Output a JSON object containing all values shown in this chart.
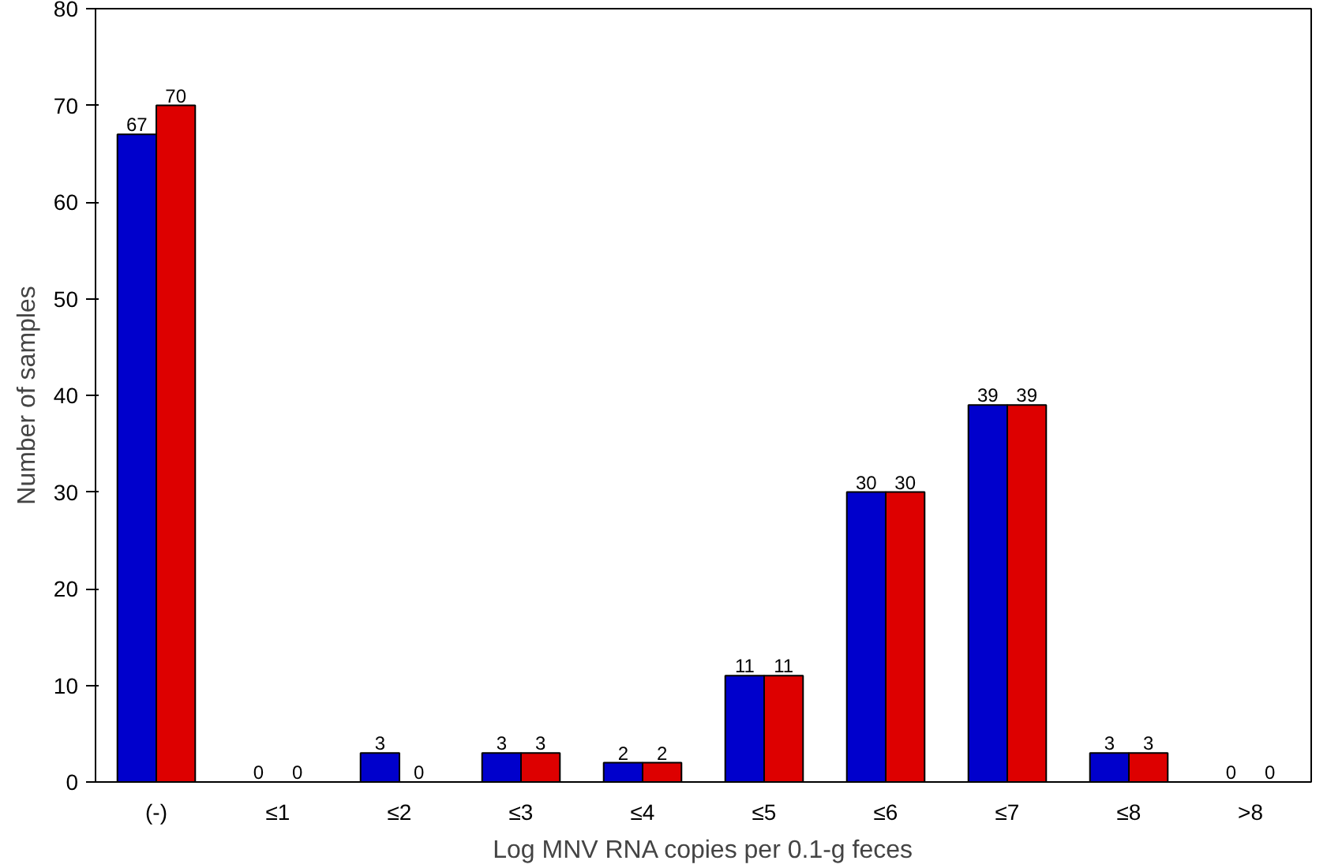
{
  "chart_data": {
    "type": "bar",
    "xlabel": "Log MNV RNA copies per 0.1-g feces",
    "ylabel": "Number of samples",
    "categories": [
      "(-)",
      "≤1",
      "≤2",
      "≤3",
      "≤4",
      "≤5",
      "≤6",
      "≤7",
      "≤8",
      ">8"
    ],
    "series": [
      {
        "color": "#0000cc",
        "values": [
          67,
          0,
          3,
          3,
          2,
          11,
          30,
          39,
          3,
          0
        ]
      },
      {
        "color": "#dd0000",
        "values": [
          70,
          0,
          0,
          3,
          2,
          11,
          30,
          39,
          3,
          0
        ]
      }
    ],
    "ylim": [
      0,
      80
    ],
    "yticks": [
      0,
      10,
      20,
      30,
      40,
      50,
      60,
      70,
      80
    ],
    "grid": false,
    "data_labels": true
  }
}
